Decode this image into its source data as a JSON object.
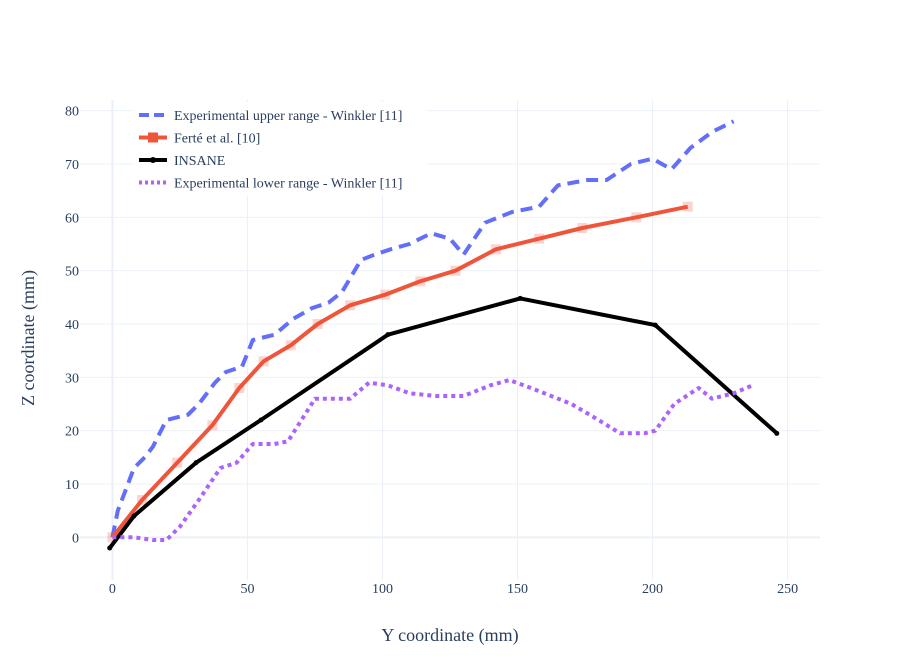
{
  "chart_data": {
    "type": "line",
    "title": "",
    "xlabel": "Y coordinate (mm)",
    "ylabel": "Z coordinate (mm)",
    "xlim": [
      -12,
      262
    ],
    "ylim": [
      -8,
      82
    ],
    "xticks": [
      0,
      50,
      100,
      150,
      200,
      250
    ],
    "yticks": [
      0,
      10,
      20,
      30,
      40,
      50,
      60,
      70,
      80
    ],
    "grid": true,
    "legend_position": "top-left",
    "series": [
      {
        "name": "Experimental upper range - Winkler [11]",
        "color": "#636efa",
        "dash": "dash",
        "marker": "none",
        "x": [
          0,
          2,
          8,
          12,
          15,
          20,
          28,
          32,
          38,
          42,
          48,
          52,
          60,
          67,
          74,
          80,
          85,
          92,
          97,
          103,
          110,
          118,
          125,
          130,
          138,
          148,
          158,
          165,
          176,
          183,
          192,
          200,
          207,
          214,
          222,
          230
        ],
        "y": [
          0,
          5,
          13,
          15,
          17,
          22,
          23,
          25,
          29,
          31,
          32,
          37,
          38,
          41,
          43,
          44,
          46,
          52,
          53,
          54,
          55,
          57,
          56,
          53,
          59,
          61,
          62,
          66,
          67,
          67,
          70,
          71,
          69,
          73,
          76,
          78
        ]
      },
      {
        "name": "Ferté et al. [10]",
        "color": "#ef553b",
        "dash": "solid",
        "marker": "square",
        "x": [
          0,
          11,
          24,
          37,
          47,
          56,
          66,
          76,
          88,
          101,
          114,
          127,
          142,
          158,
          174,
          194,
          213
        ],
        "y": [
          0,
          7,
          14,
          21,
          28,
          33,
          36,
          40,
          43.5,
          45.5,
          48,
          50,
          54,
          56,
          58,
          60,
          62
        ]
      },
      {
        "name": "INSANE",
        "color": "#000000",
        "dash": "solid",
        "marker": "circle",
        "x": [
          -1,
          8,
          31,
          55,
          102,
          151,
          201,
          246
        ],
        "y": [
          -2,
          4,
          14,
          22,
          38,
          44.8,
          39.8,
          19.5
        ]
      },
      {
        "name": "Experimental lower range - Winkler [11]",
        "color": "#ab63fa",
        "dash": "dot",
        "marker": "none",
        "x": [
          0,
          8,
          15,
          20,
          25,
          32,
          40,
          46,
          52,
          60,
          65,
          75,
          80,
          88,
          95,
          102,
          110,
          120,
          130,
          140,
          147,
          155,
          170,
          180,
          188,
          197,
          201,
          208,
          217,
          222,
          230,
          237
        ],
        "y": [
          0,
          0,
          -0.5,
          -0.5,
          2,
          7,
          13,
          14,
          17.5,
          17.5,
          18,
          26,
          26,
          26,
          29,
          28.5,
          27,
          26.5,
          26.5,
          28.5,
          29.5,
          28,
          25,
          22,
          19.5,
          19.5,
          20,
          25,
          28,
          26,
          27,
          28.5
        ]
      }
    ]
  }
}
